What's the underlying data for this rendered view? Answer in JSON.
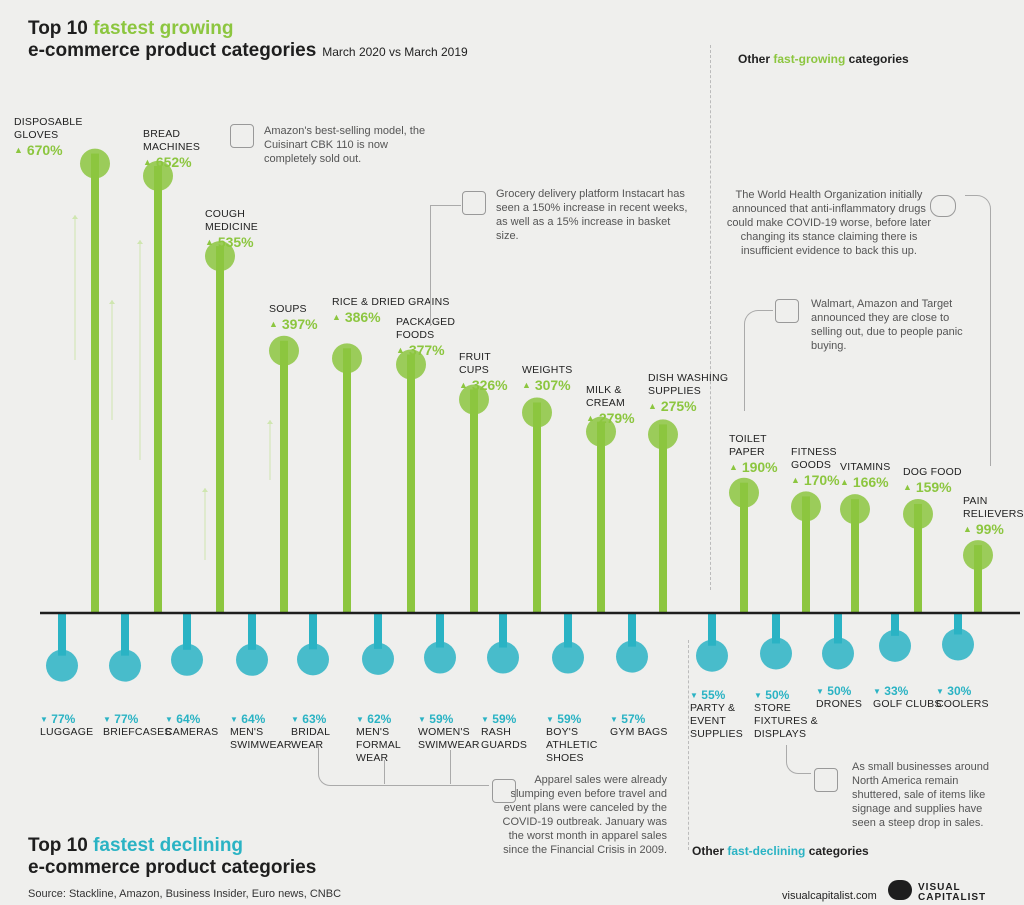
{
  "header": {
    "top_prefix": "Top 10 ",
    "top_highlight": "fastest growing",
    "top_line2": "e-commerce product categories",
    "top_subtitle": "March 2020 vs March 2019",
    "bottom_prefix": "Top 10 ",
    "bottom_highlight": "fastest declining",
    "bottom_line2": "e-commerce product categories",
    "other_growing_prefix": "Other ",
    "other_growing_highlight": "fast-growing",
    "other_growing_suffix": " categories",
    "other_declining_prefix": "Other ",
    "other_declining_highlight": "fast-declining",
    "other_declining_suffix": " categories"
  },
  "notes": {
    "bread": "Amazon's best-selling model, the Cuisinart CBK 110 is now completely sold out.",
    "instacart": "Grocery delivery platform Instacart has seen a 150% increase in recent weeks, as well as a 15% increase in basket size.",
    "who": "The World Health Organization initially announced that anti-inflammatory drugs could make COVID-19 worse, before later changing its stance claiming there is insufficient evidence to back this up.",
    "toilet": "Walmart, Amazon and Target announced they are close to selling out, due to people panic buying.",
    "apparel": "Apparel sales were already slumping even before travel and event plans were canceled by the COVID-19 outbreak. January was the worst month in apparel sales since the Financial Crisis in 2009.",
    "business": "As small businesses around North America remain shuttered, sale of items like signage and supplies have seen a steep drop in sales."
  },
  "footer": {
    "source": "Source: Stackline, Amazon, Business Insider, Euro news, CNBC",
    "site": "visualcapitalist.com",
    "brand_line1": "VISUAL",
    "brand_line2": "CAPITALIST"
  },
  "colors": {
    "growth": "#8cc63f",
    "decline": "#2ab3c4",
    "baseline": "#1e1e1e"
  },
  "chart_data": [
    {
      "type": "bar",
      "title": "Top 10 fastest growing e-commerce product categories",
      "subtitle": "March 2020 vs March 2019",
      "group": "Top 10",
      "unit": "%",
      "categories": [
        "DISPOSABLE GLOVES",
        "BREAD MACHINES",
        "COUGH MEDICINE",
        "SOUPS",
        "RICE & DRIED GRAINS",
        "PACKAGED FOODS",
        "FRUIT CUPS",
        "WEIGHTS",
        "MILK & CREAM",
        "DISH WASHING SUPPLIES"
      ],
      "values": [
        670,
        652,
        535,
        397,
        386,
        377,
        326,
        307,
        279,
        275
      ],
      "labels": [
        "670%",
        "652%",
        "535%",
        "397%",
        "386%",
        "377%",
        "326%",
        "307%",
        "279%",
        "275%"
      ],
      "ylim": [
        0,
        700
      ]
    },
    {
      "type": "bar",
      "title": "Other fast-growing categories",
      "unit": "%",
      "categories": [
        "TOILET PAPER",
        "FITNESS GOODS",
        "VITAMINS",
        "DOG FOOD",
        "PAIN RELIEVERS"
      ],
      "values": [
        190,
        170,
        166,
        159,
        99
      ],
      "labels": [
        "190%",
        "170%",
        "166%",
        "159%",
        "99%"
      ],
      "ylim": [
        0,
        700
      ]
    },
    {
      "type": "bar",
      "title": "Top 10 fastest declining e-commerce product categories",
      "unit": "%",
      "categories": [
        "LUGGAGE",
        "BRIEFCASES",
        "CAMERAS",
        "MEN'S SWIMWEAR",
        "BRIDAL WEAR",
        "MEN'S FORMAL WEAR",
        "WOMEN'S SWIMWEAR",
        "RASH GUARDS",
        "BOY'S ATHLETIC SHOES",
        "GYM BAGS"
      ],
      "values": [
        -77,
        -77,
        -64,
        -64,
        -63,
        -62,
        -59,
        -59,
        -59,
        -57
      ],
      "labels": [
        "77%",
        "77%",
        "64%",
        "64%",
        "63%",
        "62%",
        "59%",
        "59%",
        "59%",
        "57%"
      ]
    },
    {
      "type": "bar",
      "title": "Other fast-declining categories",
      "unit": "%",
      "categories": [
        "PARTY & EVENT SUPPLIES",
        "STORE FIXTURES & DISPLAYS",
        "DRONES",
        "GOLF CLUBS",
        "COOLERS"
      ],
      "values": [
        -55,
        -50,
        -50,
        -33,
        -30
      ],
      "labels": [
        "55%",
        "50%",
        "50%",
        "33%",
        "30%"
      ]
    }
  ]
}
